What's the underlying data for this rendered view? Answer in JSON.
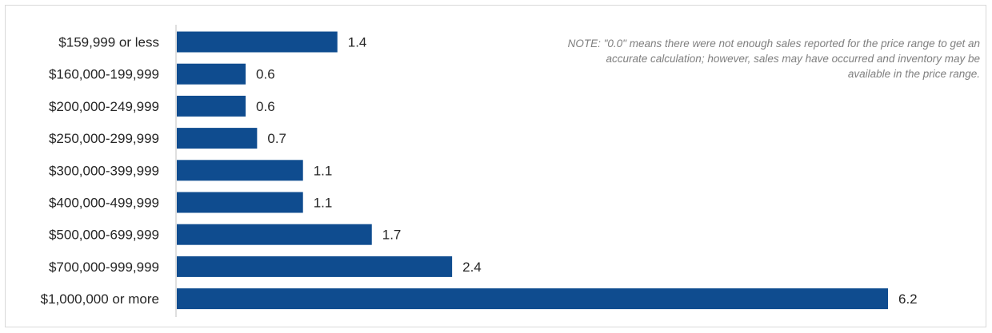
{
  "note": "NOTE: \"0.0\" means there were not enough sales reported for the price range to get an accurate calculation;  however, sales may have occurred and inventory may be available in the price range.",
  "bar_color": "#0f4c8f",
  "axis_color": "#bfbfbf",
  "chart_data": {
    "type": "bar",
    "orientation": "horizontal",
    "categories": [
      "$159,999 or less",
      "$160,000-199,999",
      "$200,000-249,999",
      "$250,000-299,999",
      "$300,000-399,999",
      "$400,000-499,999",
      "$500,000-699,999",
      "$700,000-999,999",
      "$1,000,000 or more"
    ],
    "values": [
      1.4,
      0.6,
      0.6,
      0.7,
      1.1,
      1.1,
      1.7,
      2.4,
      6.2
    ],
    "value_labels": [
      "1.4",
      "0.6",
      "0.6",
      "0.7",
      "1.1",
      "1.1",
      "1.7",
      "2.4",
      "6.2"
    ],
    "xlim": [
      0,
      6.2
    ],
    "grid": false,
    "legend": "none",
    "title": "",
    "xlabel": "",
    "ylabel": ""
  }
}
